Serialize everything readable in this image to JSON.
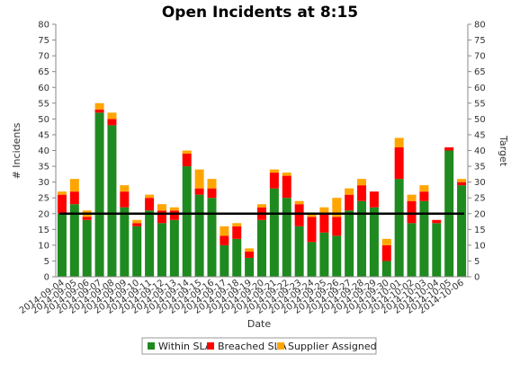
{
  "colors": {
    "within": "#1f8a1f",
    "breached": "#ff0000",
    "supplier": "#ffa500",
    "target": "#000000"
  },
  "chart_data": {
    "type": "bar",
    "stacked": true,
    "title": "Open Incidents at 8:15",
    "xlabel": "Date",
    "ylabel": "# Incidents",
    "y2label": "Target",
    "ylim": [
      0,
      80
    ],
    "yticks": [
      0,
      5,
      10,
      15,
      20,
      25,
      30,
      35,
      40,
      45,
      50,
      55,
      60,
      65,
      70,
      75,
      80
    ],
    "legend_position": "bottom",
    "categories": [
      "2014-09-04",
      "2014-09-05",
      "2014-09-06",
      "2014-09-07",
      "2014-09-08",
      "2014-09-09",
      "2014-09-10",
      "2014-09-11",
      "2014-09-12",
      "2014-09-13",
      "2014-09-14",
      "2014-09-15",
      "2014-09-16",
      "2014-09-17",
      "2014-09-18",
      "2014-09-19",
      "2014-09-20",
      "2014-09-21",
      "2014-09-22",
      "2014-09-23",
      "2014-09-24",
      "2014-09-25",
      "2014-09-26",
      "2014-09-27",
      "2014-09-28",
      "2014-09-29",
      "2014-09-30",
      "2014-10-01",
      "2014-10-02",
      "2014-10-03",
      "2014-10-04",
      "2014-10-05",
      "2014-10-06"
    ],
    "series": [
      {
        "name": "Within SLA",
        "values": [
          20,
          23,
          18,
          52,
          48,
          22,
          16,
          21,
          17,
          18,
          35,
          26,
          25,
          10,
          12,
          6,
          18,
          28,
          25,
          16,
          11,
          14,
          13,
          21,
          24,
          22,
          5,
          31,
          17,
          24,
          17,
          40,
          29
        ]
      },
      {
        "name": "Breached SLA",
        "values": [
          6,
          4,
          1,
          1,
          2,
          5,
          1,
          4,
          4,
          3,
          4,
          2,
          3,
          3,
          4,
          2,
          4,
          5,
          7,
          7,
          8,
          6,
          6,
          5,
          5,
          5,
          5,
          10,
          7,
          3,
          1,
          1,
          1
        ]
      },
      {
        "name": "Supplier Assigned",
        "values": [
          1,
          4,
          2,
          2,
          2,
          2,
          1,
          1,
          2,
          1,
          1,
          6,
          3,
          3,
          1,
          1,
          1,
          1,
          1,
          1,
          1,
          2,
          6,
          2,
          2,
          0,
          2,
          3,
          2,
          2,
          0,
          0,
          1
        ]
      }
    ],
    "target": 20
  }
}
